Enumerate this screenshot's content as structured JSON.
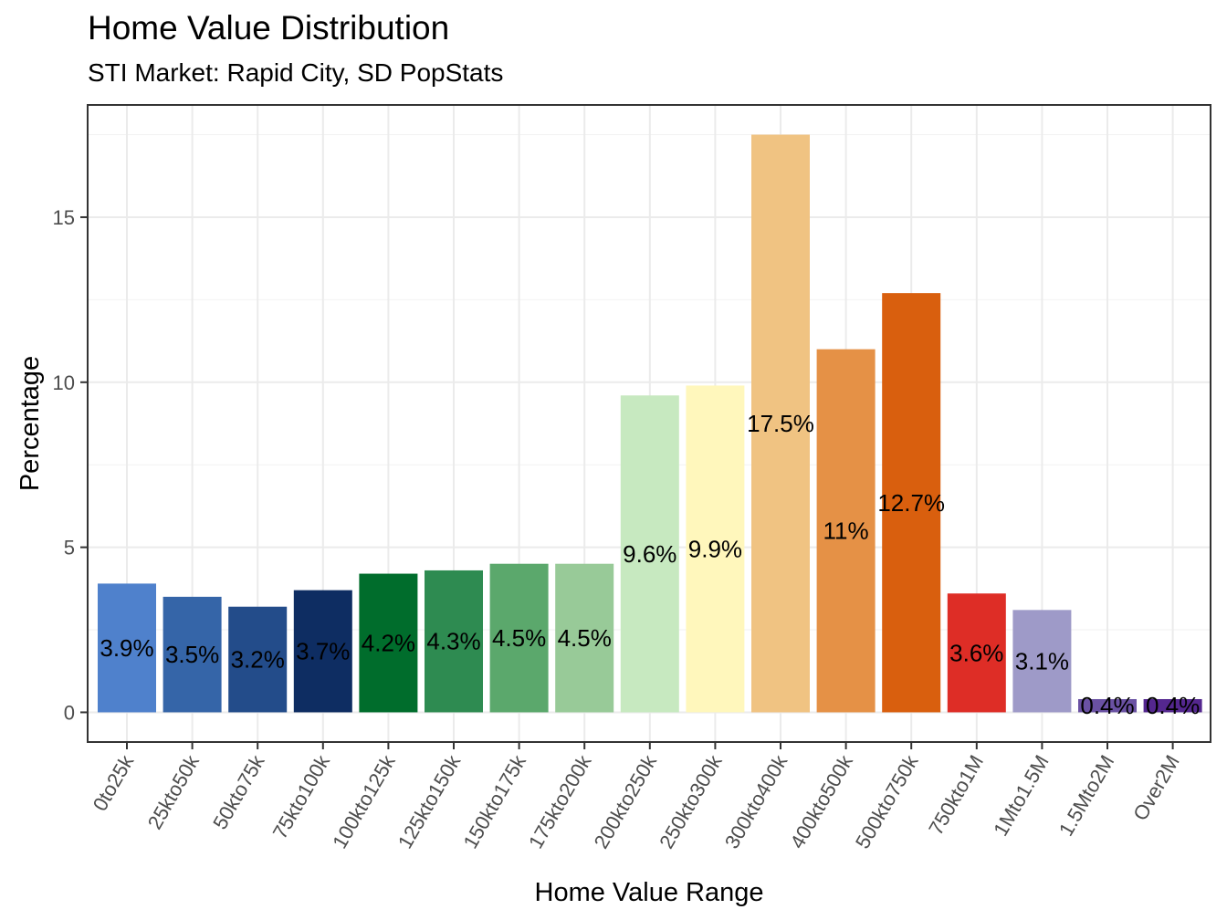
{
  "chart_data": {
    "type": "bar",
    "title": "Home Value Distribution",
    "subtitle": "STI Market: Rapid City, SD PopStats",
    "xlabel": "Home Value Range",
    "ylabel": "Percentage",
    "ylim": [
      -0.9,
      18.4
    ],
    "yticks": [
      0,
      5,
      10,
      15
    ],
    "grid": true,
    "categories": [
      "0to25k",
      "25kto50k",
      "50kto75k",
      "75kto100k",
      "100kto125k",
      "125kto150k",
      "150kto175k",
      "175kto200k",
      "200kto250k",
      "250kto300k",
      "300kto400k",
      "400kto500k",
      "500kto750k",
      "750kto1M",
      "1Mto1.5M",
      "1.5Mto2M",
      "Over2M"
    ],
    "values": [
      3.9,
      3.5,
      3.2,
      3.7,
      4.2,
      4.3,
      4.5,
      4.5,
      9.6,
      9.9,
      17.5,
      11,
      12.7,
      3.6,
      3.1,
      0.4,
      0.4
    ],
    "labels": [
      "3.9%",
      "3.5%",
      "3.2%",
      "3.7%",
      "4.2%",
      "4.3%",
      "4.5%",
      "4.5%",
      "9.6%",
      "9.9%",
      "17.5%",
      "11%",
      "12.7%",
      "3.6%",
      "3.1%",
      "0.4%",
      "0.4%"
    ],
    "colors": [
      "#4F81CC",
      "#3565A8",
      "#234C8A",
      "#0E2D62",
      "#006D2C",
      "#2E8B51",
      "#5BA86C",
      "#98CA98",
      "#C7E9C0",
      "#FFF7BC",
      "#F0C382",
      "#E59146",
      "#D95F0E",
      "#DE2D26",
      "#9E9AC8",
      "#6A51A3",
      "#54278F"
    ]
  }
}
